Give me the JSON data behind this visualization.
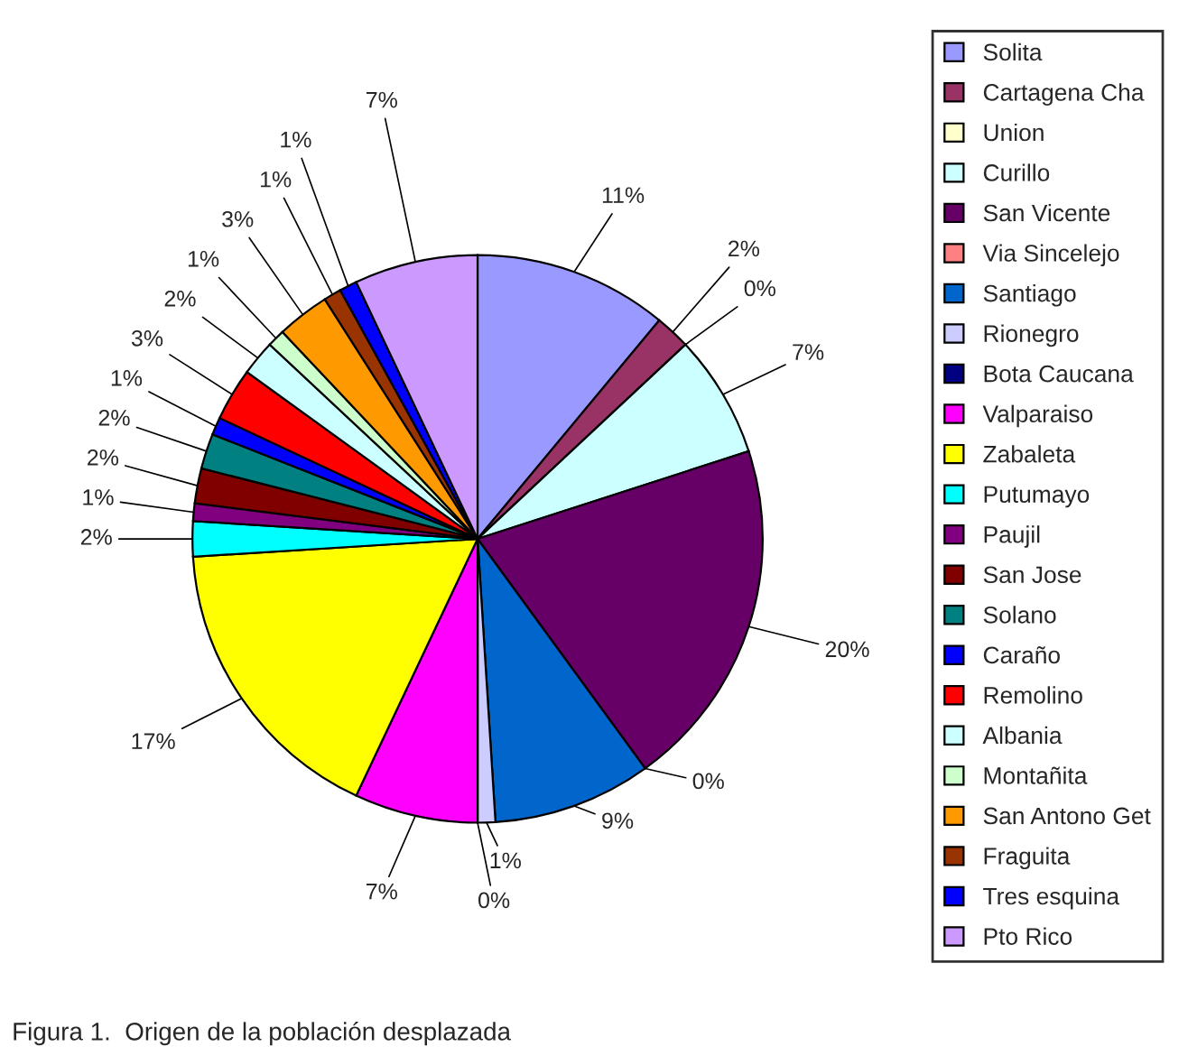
{
  "chart_data": {
    "type": "pie",
    "categories": [
      "Solita",
      "Cartagena Cha",
      "Union",
      "Curillo",
      "San Vicente",
      "Via Sincelejo",
      "Santiago",
      "Rionegro",
      "Bota Caucana",
      "Valparaiso",
      "Zabaleta",
      "Putumayo",
      "Paujil",
      "San Jose",
      "Solano",
      "Caraño",
      "Remolino",
      "Albania",
      "Montañita",
      "San Antono Get",
      "Fraguita",
      "Tres esquina",
      "Pto Rico"
    ],
    "values": [
      11,
      2,
      0,
      7,
      20,
      0,
      9,
      1,
      0,
      7,
      17,
      2,
      1,
      2,
      2,
      1,
      3,
      2,
      1,
      3,
      1,
      1,
      7
    ],
    "colors": [
      "#9999ff",
      "#993366",
      "#ffffcc",
      "#ccffff",
      "#660066",
      "#ff8080",
      "#0066cc",
      "#ccccff",
      "#000080",
      "#ff00ff",
      "#ffff00",
      "#00ffff",
      "#800080",
      "#800000",
      "#008080",
      "#0000ff",
      "#ff0000",
      "#ccffff",
      "#ccffcc",
      "#ff9900",
      "#993300",
      "#0000ff",
      "#cc99ff"
    ],
    "value_labels": [
      "11%",
      "2%",
      "0%",
      "7%",
      "20%",
      "0%",
      "9%",
      "1%",
      "0%",
      "7%",
      "17%",
      "2%",
      "1%",
      "2%",
      "2%",
      "1%",
      "3%",
      "2%",
      "1%",
      "3%",
      "1%",
      "1%",
      "7%"
    ],
    "legend": "right",
    "annotations": [
      "Figura 1.  Origen de la población desplazada"
    ]
  }
}
